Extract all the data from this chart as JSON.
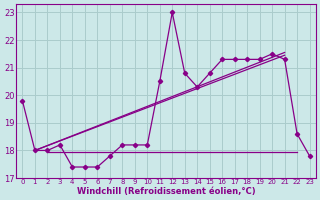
{
  "x": [
    0,
    1,
    2,
    3,
    4,
    5,
    6,
    7,
    8,
    9,
    10,
    11,
    12,
    13,
    14,
    15,
    16,
    17,
    18,
    19,
    20,
    21,
    22,
    23
  ],
  "windchill": [
    19.8,
    18.0,
    18.0,
    18.2,
    17.4,
    17.4,
    17.4,
    17.8,
    18.2,
    18.2,
    18.2,
    20.5,
    23.0,
    20.8,
    20.3,
    20.8,
    21.3,
    21.3,
    21.3,
    21.3,
    21.5,
    21.3,
    18.6,
    17.8
  ],
  "trend1_x": [
    1,
    21
  ],
  "trend1_y": [
    18.0,
    21.55
  ],
  "trend2_x": [
    1,
    21
  ],
  "trend2_y": [
    18.0,
    21.45
  ],
  "hline_x": [
    2,
    22
  ],
  "hline_y": 17.95,
  "color": "#880088",
  "bg_color": "#cce8e8",
  "grid_color": "#aacccc",
  "xlabel": "Windchill (Refroidissement éolien,°C)",
  "xlim": [
    -0.5,
    23.5
  ],
  "ylim": [
    17.0,
    23.3
  ],
  "xticks": [
    0,
    1,
    2,
    3,
    4,
    5,
    6,
    7,
    8,
    9,
    10,
    11,
    12,
    13,
    14,
    15,
    16,
    17,
    18,
    19,
    20,
    21,
    22,
    23
  ],
  "yticks": [
    17,
    18,
    19,
    20,
    21,
    22,
    23
  ]
}
